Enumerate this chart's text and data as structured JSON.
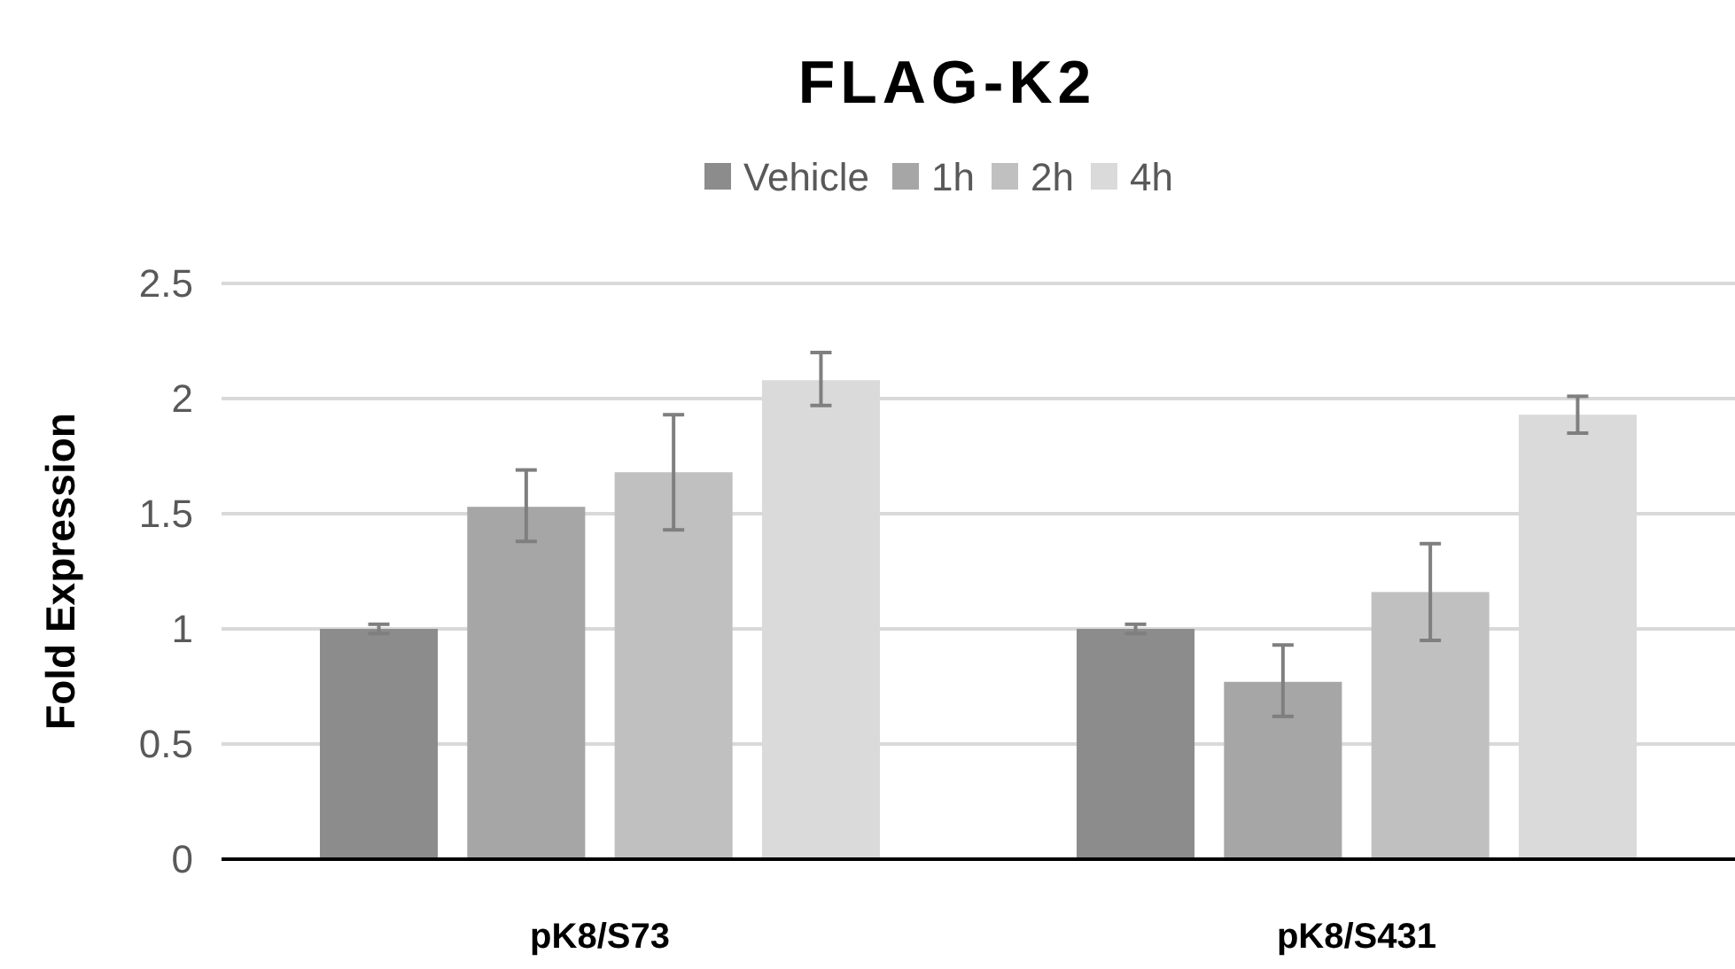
{
  "chart_data": {
    "type": "bar",
    "title": "FLAG-K2",
    "ylabel": "Fold Expression",
    "categories": [
      "pK8/S73",
      "pK8/S431"
    ],
    "series": [
      {
        "name": "Vehicle",
        "color": "#8c8c8c",
        "values": [
          1.0,
          1.0
        ],
        "errors": [
          0.02,
          0.02
        ]
      },
      {
        "name": "1h",
        "color": "#a6a6a6",
        "values": [
          1.53,
          0.77
        ],
        "errors": [
          [
            1.38,
            1.69
          ],
          [
            0.62,
            0.93
          ]
        ]
      },
      {
        "name": "2h",
        "color": "#c0c0c0",
        "values": [
          1.68,
          1.16
        ],
        "errors": [
          [
            1.43,
            1.93
          ],
          [
            0.95,
            1.37
          ]
        ]
      },
      {
        "name": "4h",
        "color": "#dadada",
        "values": [
          2.08,
          1.93
        ],
        "errors": [
          [
            1.97,
            2.2
          ],
          [
            1.85,
            2.01
          ]
        ]
      }
    ],
    "ylim": [
      0,
      2.5
    ],
    "yticks": [
      0,
      0.5,
      1,
      1.5,
      2,
      2.5
    ],
    "grid": "y",
    "legend": "top"
  }
}
